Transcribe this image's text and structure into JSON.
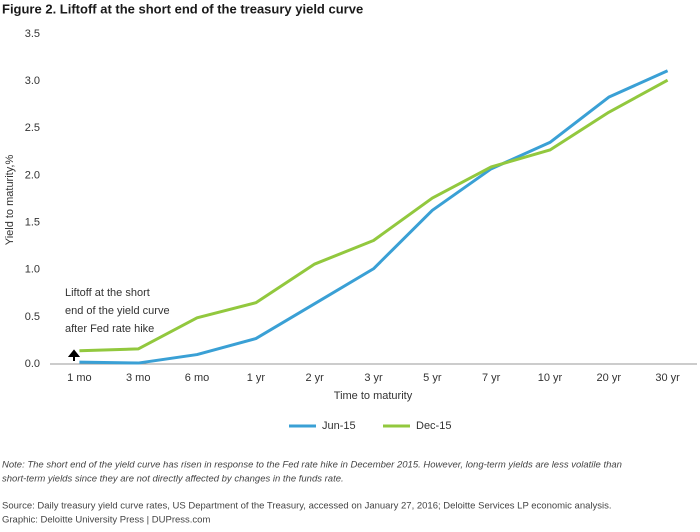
{
  "chart_data": {
    "type": "line",
    "title": "Figure 2. Liftoff at the short end of the treasury yield curve",
    "y_label": "Yield to maturity,%",
    "x_label": "Time to maturity",
    "categories": [
      "1 mo",
      "3 mo",
      "6 mo",
      "1 yr",
      "2 yr",
      "3 yr",
      "5 yr",
      "7 yr",
      "10 yr",
      "20 yr",
      "30 yr"
    ],
    "series": [
      {
        "name": "Jun-15",
        "color": "#3aa0d5",
        "values": [
          0.02,
          0.01,
          0.1,
          0.27,
          0.64,
          1.01,
          1.63,
          2.07,
          2.35,
          2.83,
          3.11
        ]
      },
      {
        "name": "Dec-15",
        "color": "#92c83e",
        "values": [
          0.14,
          0.16,
          0.49,
          0.65,
          1.06,
          1.31,
          1.76,
          2.09,
          2.27,
          2.67,
          3.01
        ]
      }
    ],
    "ylim": [
      0,
      3.5
    ],
    "yticks": [
      {
        "value": 0,
        "label": "0.0"
      },
      {
        "value": 0.5,
        "label": "0.5"
      },
      {
        "value": 1,
        "label": "1.0"
      },
      {
        "value": 1.5,
        "label": "1.5"
      },
      {
        "value": 2,
        "label": "2.0"
      },
      {
        "value": 2.5,
        "label": "2.5"
      },
      {
        "value": 3,
        "label": "3.0"
      },
      {
        "value": 3.5,
        "label": "3.5"
      }
    ],
    "grid": false,
    "annotation": [
      "Liftoff at the short",
      "end of the yield curve",
      "after Fed rate hike"
    ],
    "note": [
      "Note: The short end of the yield curve has risen in response to the Fed rate hike in December 2015. However, long-term yields are less volatile than",
      "short-term yields since they are not directly affected by changes in the funds rate."
    ],
    "source": "Source: Daily treasury yield curve rates, US Department of the Treasury, accessed on January 27, 2016; Deloitte Services LP economic analysis.",
    "credit": "Graphic: Deloitte University Press | DUPress.com"
  }
}
